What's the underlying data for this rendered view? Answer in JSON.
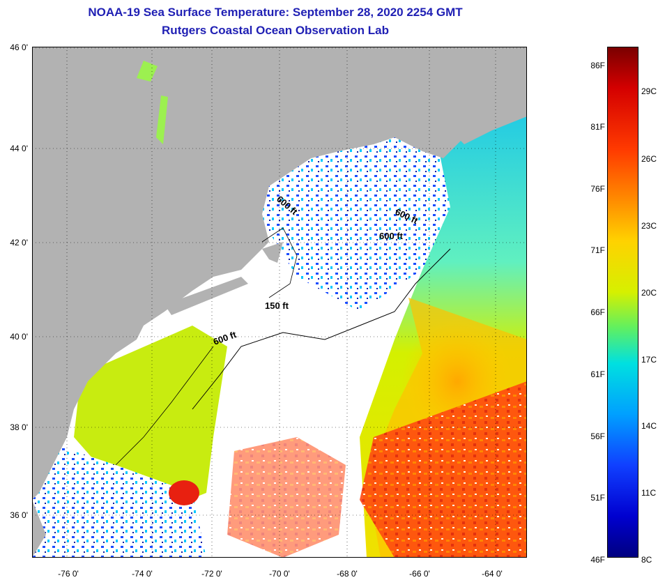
{
  "title": {
    "line1": "NOAA-19 Sea Surface Temperature:  September 28, 2020 2254 GMT",
    "line2": "Rutgers Coastal Ocean Observation Lab"
  },
  "latitude_labels": [
    "46 0'",
    "44 0'",
    "42 0'",
    "40 0'",
    "38 0'",
    "36 0'"
  ],
  "longitude_labels": [
    "-76 0'",
    "-74 0'",
    "-72 0'",
    "-70 0'",
    "-68 0'",
    "-66 0'",
    "-64 0'"
  ],
  "isobaths": [
    "600 ft",
    "600 ft",
    "600 ft",
    "150 ft",
    "600 ft"
  ],
  "colorbar": {
    "fahrenheit": [
      "86F",
      "81F",
      "76F",
      "71F",
      "66F",
      "61F",
      "56F",
      "51F",
      "46F"
    ],
    "celsius": [
      "29C",
      "26C",
      "23C",
      "20C",
      "17C",
      "14C",
      "11C",
      "8C"
    ]
  },
  "colors": {
    "title": "#1f1fb4",
    "land": "#b2b2b2",
    "cloud": "#ffffff"
  }
}
